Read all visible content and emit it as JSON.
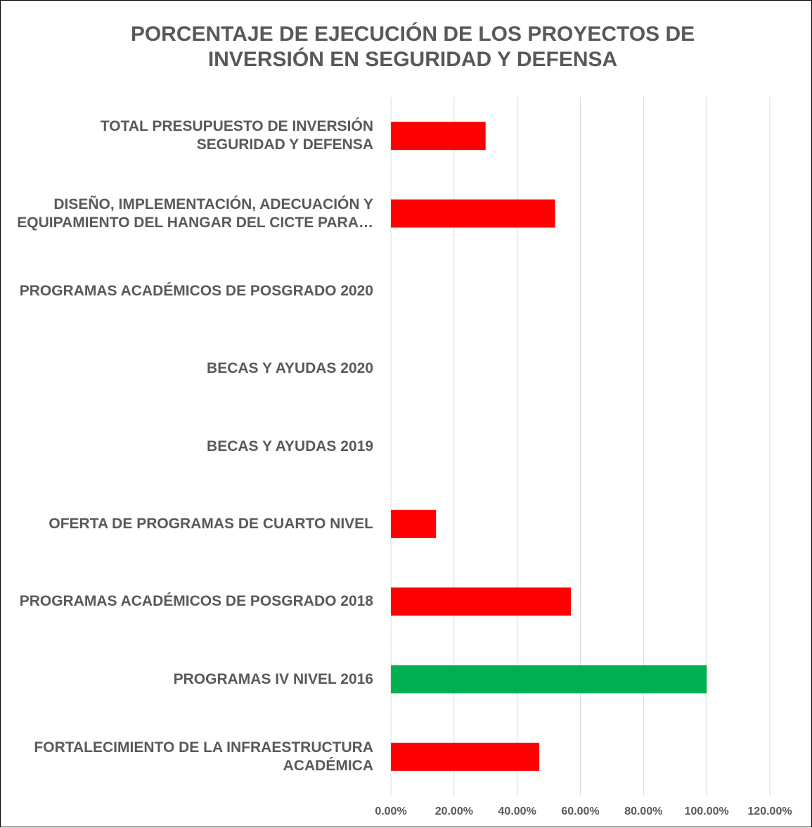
{
  "chart_data": {
    "type": "hbar",
    "title": "PORCENTAJE DE EJECUCIÓN DE LOS PROYECTOS DE INVERSIÓN EN SEGURIDAD Y DEFENSA",
    "categories": [
      "TOTAL PRESUPUESTO DE INVERSIÓN SEGURIDAD Y DEFENSA",
      "DISEÑO, IMPLEMENTACIÓN, ADECUACIÓN Y EQUIPAMIENTO DEL HANGAR DEL CICTE PARA…",
      "PROGRAMAS ACADÉMICOS DE POSGRADO 2020",
      "BECAS Y AYUDAS 2020",
      "BECAS Y AYUDAS 2019",
      "OFERTA DE PROGRAMAS DE CUARTO NIVEL",
      "PROGRAMAS ACADÉMICOS DE POSGRADO 2018",
      "PROGRAMAS IV NIVEL 2016",
      "FORTALECIMIENTO DE LA INFRAESTRUCTURA ACADÉMICA"
    ],
    "values": [
      30,
      52,
      0,
      0,
      0,
      14.3,
      57,
      100,
      47
    ],
    "colors": [
      "#ff0000",
      "#ff0000",
      "#ff0000",
      "#ff0000",
      "#ff0000",
      "#ff0000",
      "#ff0000",
      "#00b050",
      "#ff0000"
    ],
    "xlim": [
      0,
      120
    ],
    "xticks": [
      {
        "value": 0,
        "label": "0.00%"
      },
      {
        "value": 20,
        "label": "20.00%"
      },
      {
        "value": 40,
        "label": "40.00%"
      },
      {
        "value": 60,
        "label": "60.00%"
      },
      {
        "value": 80,
        "label": "80.00%"
      },
      {
        "value": 100,
        "label": "100.00%"
      },
      {
        "value": 120,
        "label": "120.00%"
      }
    ],
    "grid": true
  }
}
